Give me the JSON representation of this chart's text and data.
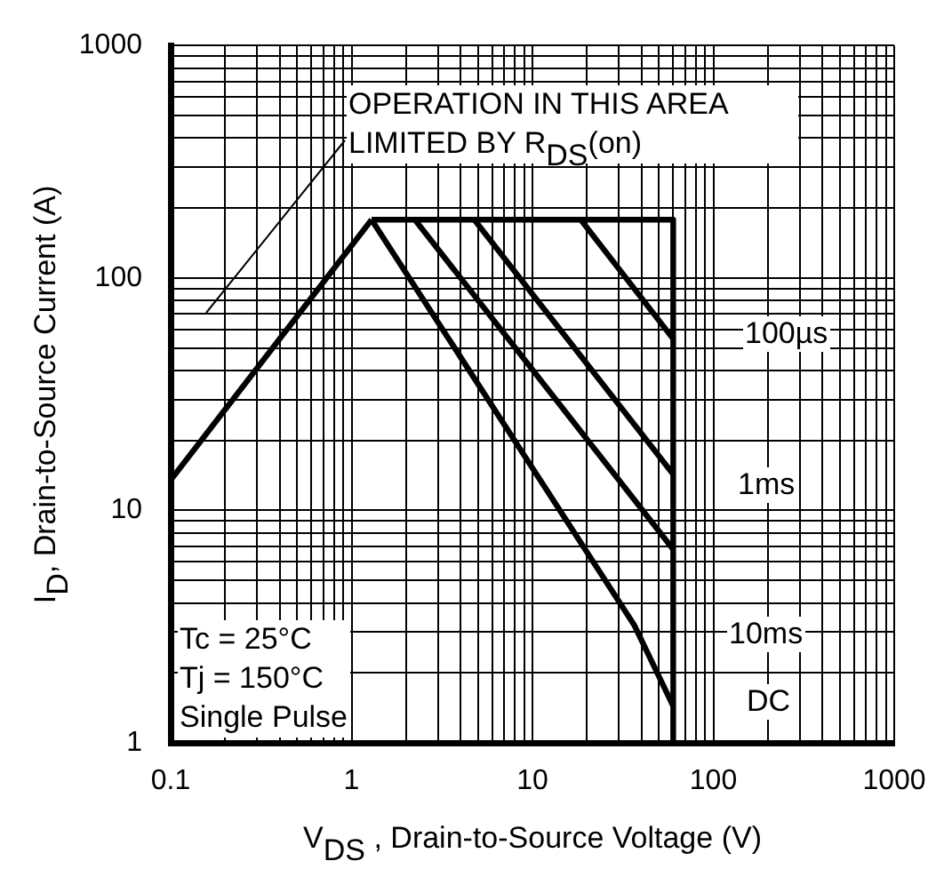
{
  "chart_data": {
    "type": "line",
    "xlabel": "V$_{DS}$ , Drain-to-Source Voltage (V)",
    "ylabel": "I$_{D}$,  Drain-to-Source Current (A)",
    "log": "xy",
    "grid": true,
    "legend": false,
    "marker": "none",
    "line_style": "solid",
    "xlim": [
      0.1,
      1000
    ],
    "xticks": [
      0.1,
      1,
      10,
      100,
      1000
    ],
    "ylim": [
      1,
      1000
    ],
    "yticks": [
      1,
      10,
      100,
      1000
    ],
    "series": [
      {
        "color": "#000000",
        "x": [
          0.1,
          1.29
        ],
        "values": [
          13.5,
          178
        ]
      },
      {
        "color": "#000000",
        "x": [
          1.29,
          60,
          60
        ],
        "values": [
          178,
          178,
          1
        ]
      },
      {
        "color": "#000000",
        "x": [
          18.5,
          60
        ],
        "values": [
          178,
          54.7
        ]
      },
      {
        "color": "#000000",
        "x": [
          4.77,
          60
        ],
        "values": [
          178,
          14.3
        ]
      },
      {
        "color": "#000000",
        "x": [
          2.24,
          60
        ],
        "values": [
          178,
          6.8
        ]
      },
      {
        "color": "#000000",
        "x": [
          1.29,
          36.6,
          60
        ],
        "values": [
          178,
          3.2,
          1.44
        ]
      }
    ],
    "annotations": [
      "OPERATION IN THIS AREA LIMITED BY R$_{DS}$(on)",
      "100µs",
      "1ms",
      "10ms",
      "DC",
      "Tc = 25°C",
      "Tj = 150°C",
      "Single Pulse"
    ]
  }
}
